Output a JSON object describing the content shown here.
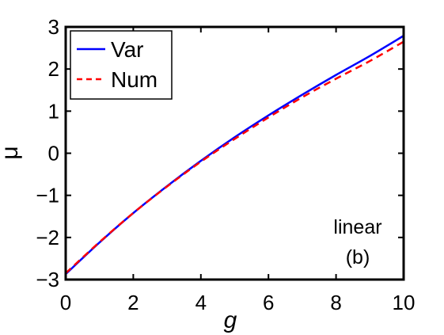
{
  "chart_data": {
    "type": "line",
    "title": "",
    "xlabel": "g",
    "ylabel": "μ",
    "xlim": [
      0,
      10
    ],
    "ylim": [
      -3,
      3
    ],
    "xticks": [
      0,
      2,
      4,
      6,
      8,
      10
    ],
    "yticks": [
      -3,
      -2,
      -1,
      0,
      1,
      2,
      3
    ],
    "xtick_labels": [
      "0",
      "2",
      "4",
      "6",
      "8",
      "10"
    ],
    "ytick_labels": [
      "−3",
      "−2",
      "−1",
      "0",
      "1",
      "2",
      "3"
    ],
    "grid": false,
    "legend_position": "top-left",
    "annotations": [
      "linear",
      "(b)"
    ],
    "x": [
      0,
      1,
      2,
      3,
      4,
      5,
      6,
      7,
      8,
      9,
      10
    ],
    "series": [
      {
        "name": "Var",
        "color": "#0000ff",
        "linestyle": "solid",
        "values": [
          -2.87,
          -2.12,
          -1.42,
          -0.78,
          -0.18,
          0.38,
          0.9,
          1.39,
          1.86,
          2.31,
          2.79
        ]
      },
      {
        "name": "Num",
        "color": "#ff0000",
        "linestyle": "dashed",
        "values": [
          -2.85,
          -2.11,
          -1.42,
          -0.79,
          -0.2,
          0.34,
          0.85,
          1.33,
          1.77,
          2.19,
          2.65
        ]
      }
    ]
  }
}
